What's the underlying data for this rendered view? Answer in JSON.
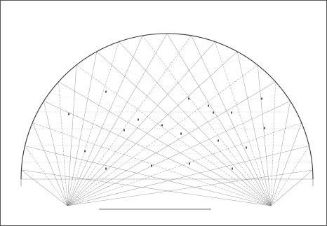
{
  "colors": {
    "stroke": "#7a7a7a",
    "arc": "#333333",
    "frame": "#555555",
    "background": "#ffffff"
  },
  "diagram": {
    "kind": "semicircle-ray-construction",
    "ray_count_per_focus": 19,
    "grid_horizontals": 5
  }
}
